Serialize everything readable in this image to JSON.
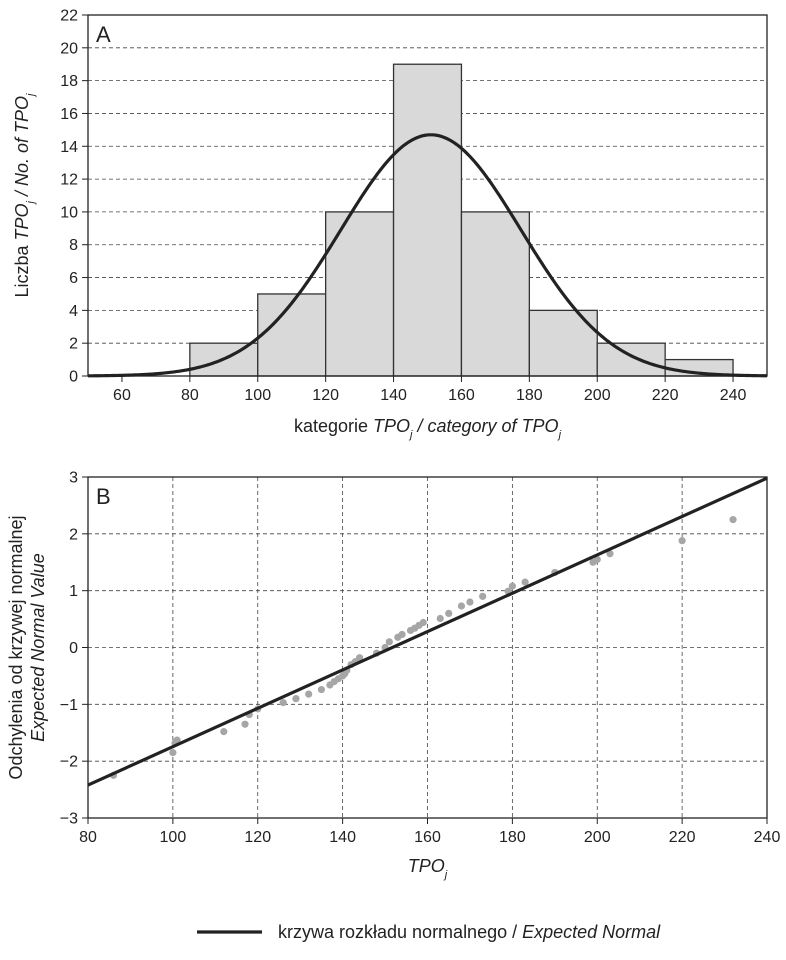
{
  "chart_data": [
    {
      "panel_label": "A",
      "type": "bar",
      "subtype": "histogram",
      "xlim": [
        50,
        250
      ],
      "ylim": [
        0,
        22
      ],
      "x_ticks": [
        60,
        80,
        100,
        120,
        140,
        160,
        180,
        200,
        220,
        240
      ],
      "y_ticks": [
        0,
        2,
        4,
        6,
        8,
        10,
        12,
        14,
        16,
        18,
        20,
        22
      ],
      "bins": [
        {
          "from": 80,
          "to": 100,
          "count": 2
        },
        {
          "from": 100,
          "to": 120,
          "count": 5
        },
        {
          "from": 120,
          "to": 140,
          "count": 10
        },
        {
          "from": 140,
          "to": 160,
          "count": 19
        },
        {
          "from": 160,
          "to": 180,
          "count": 10
        },
        {
          "from": 180,
          "to": 200,
          "count": 4
        },
        {
          "from": 200,
          "to": 220,
          "count": 2
        },
        {
          "from": 220,
          "to": 240,
          "count": 1
        }
      ],
      "normal_curve": {
        "mean": 151,
        "sd": 26.5,
        "peak": 14.7
      },
      "grid": "horizontal dashed",
      "colors": {
        "bar_fill": "#d9d9d9",
        "bar_stroke": "#333333",
        "curve": "#222222"
      },
      "xlabel": {
        "parts": [
          {
            "text": "kategorie ",
            "italic": false
          },
          {
            "text": "TPO",
            "italic": true
          },
          {
            "text": "j",
            "italic": true,
            "sub": true
          },
          {
            "text": " / category of TPO",
            "italic": true
          },
          {
            "text": "j",
            "italic": true,
            "sub": true
          }
        ]
      },
      "ylabel": {
        "parts": [
          {
            "text": "Liczba ",
            "italic": false
          },
          {
            "text": "TPO",
            "italic": true
          },
          {
            "text": "j",
            "italic": true,
            "sub": true
          },
          {
            "text": " / No. of TPO",
            "italic": true
          },
          {
            "text": "j",
            "italic": true,
            "sub": true
          }
        ]
      }
    },
    {
      "panel_label": "B",
      "type": "scatter",
      "subtype": "normal probability plot",
      "xlim": [
        80,
        240
      ],
      "ylim": [
        -3,
        3
      ],
      "x_ticks": [
        80,
        100,
        120,
        140,
        160,
        180,
        200,
        220,
        240
      ],
      "y_ticks": [
        -3,
        -2,
        -1,
        0,
        1,
        2,
        3
      ],
      "y_tick_labels": [
        "−3",
        "−2",
        "−1",
        "0",
        "1",
        "2",
        "3"
      ],
      "reference_line": {
        "x": [
          80,
          240
        ],
        "y": [
          -2.42,
          2.98
        ]
      },
      "points": [
        [
          86,
          -2.25
        ],
        [
          100,
          -1.85
        ],
        [
          100.5,
          -1.68
        ],
        [
          101,
          -1.63
        ],
        [
          112,
          -1.48
        ],
        [
          117,
          -1.35
        ],
        [
          118,
          -1.18
        ],
        [
          120,
          -1.08
        ],
        [
          126,
          -0.97
        ],
        [
          129,
          -0.9
        ],
        [
          132,
          -0.82
        ],
        [
          135,
          -0.74
        ],
        [
          137,
          -0.66
        ],
        [
          138,
          -0.6
        ],
        [
          139,
          -0.55
        ],
        [
          140,
          -0.5
        ],
        [
          140.5,
          -0.46
        ],
        [
          141,
          -0.4
        ],
        [
          142,
          -0.3
        ],
        [
          143,
          -0.25
        ],
        [
          144,
          -0.18
        ],
        [
          148,
          -0.1
        ],
        [
          150,
          0.0
        ],
        [
          151,
          0.1
        ],
        [
          153,
          0.18
        ],
        [
          154,
          0.23
        ],
        [
          156,
          0.3
        ],
        [
          157,
          0.34
        ],
        [
          158,
          0.39
        ],
        [
          159,
          0.44
        ],
        [
          163,
          0.51
        ],
        [
          165,
          0.6
        ],
        [
          168,
          0.73
        ],
        [
          170,
          0.8
        ],
        [
          173,
          0.9
        ],
        [
          179,
          0.99
        ],
        [
          180,
          1.08
        ],
        [
          183,
          1.15
        ],
        [
          190,
          1.32
        ],
        [
          199,
          1.5
        ],
        [
          200,
          1.55
        ],
        [
          203,
          1.65
        ],
        [
          220,
          1.88
        ],
        [
          232,
          2.25
        ]
      ],
      "grid": "both dashed",
      "colors": {
        "points": "#a6a6a6",
        "line": "#222222"
      },
      "xlabel": {
        "parts": [
          {
            "text": "TPO",
            "italic": true
          },
          {
            "text": "j",
            "italic": true,
            "sub": true
          }
        ]
      },
      "ylabel_lines": [
        {
          "parts": [
            {
              "text": "Odchylenia od krzywej normalnej",
              "italic": false
            }
          ]
        },
        {
          "parts": [
            {
              "text": "Expected Normal Value",
              "italic": true
            }
          ]
        }
      ]
    }
  ],
  "legend": {
    "position": "bottom-center",
    "parts": [
      {
        "text": "krzywa rozkładu normalnego / ",
        "italic": false
      },
      {
        "text": "Expected Normal",
        "italic": true
      }
    ]
  }
}
